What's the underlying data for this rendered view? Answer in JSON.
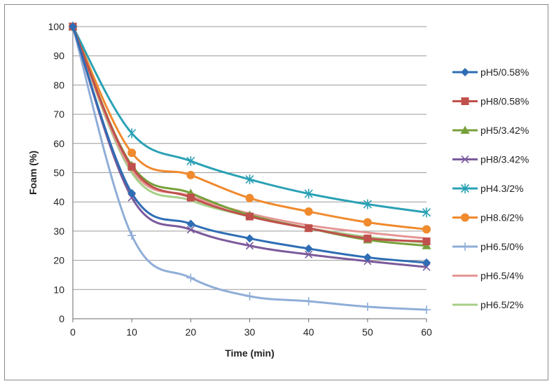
{
  "chart_data": {
    "type": "line",
    "title": "",
    "xlabel": "Time (min)",
    "ylabel": "Foam (%)",
    "x": [
      0,
      10,
      20,
      30,
      40,
      50,
      60
    ],
    "xlim": [
      0,
      60
    ],
    "ylim": [
      0,
      100
    ],
    "xticks": [
      "0",
      "10",
      "20",
      "30",
      "40",
      "50",
      "60"
    ],
    "yticks": [
      "0",
      "10",
      "20",
      "30",
      "40",
      "50",
      "60",
      "70",
      "80",
      "90",
      "100"
    ],
    "grid": "horizontal",
    "legend_position": "right",
    "series": [
      {
        "name": "pH5/0.58%",
        "color": "#2E6DB4",
        "marker": "diamond",
        "values": [
          100,
          43,
          32.5,
          27.5,
          24,
          21,
          19.2
        ]
      },
      {
        "name": "pH8/0.58%",
        "color": "#C0504D",
        "marker": "square",
        "values": [
          100,
          52,
          41.5,
          35,
          31,
          27.5,
          26.5
        ]
      },
      {
        "name": "pH5/3.42%",
        "color": "#77A03A",
        "marker": "triangle",
        "values": [
          100,
          52.5,
          43,
          35.5,
          31,
          27,
          25
        ]
      },
      {
        "name": "pH8/3.42%",
        "color": "#7B5A9C",
        "marker": "x",
        "values": [
          100,
          41.5,
          30.5,
          25,
          22,
          19.7,
          17.7
        ]
      },
      {
        "name": "pH4.3/2%",
        "color": "#2AA1B5",
        "marker": "asterisk",
        "values": [
          100,
          63.5,
          54,
          47.7,
          42.8,
          39.2,
          36.4
        ]
      },
      {
        "name": "pH8.6/2%",
        "color": "#F08A2E",
        "marker": "circle",
        "values": [
          100,
          56.8,
          49.2,
          41.3,
          36.7,
          33,
          30.6
        ]
      },
      {
        "name": "pH6.5/0%",
        "color": "#8FAED8",
        "marker": "plus",
        "values": [
          100,
          28.5,
          14,
          7.7,
          6,
          4.1,
          3.1
        ]
      },
      {
        "name": "pH6.5/4%",
        "color": "#E59694",
        "marker": "none",
        "values": [
          100,
          51,
          42,
          36,
          32,
          29.5,
          27.5
        ]
      },
      {
        "name": "pH6.5/2%",
        "color": "#A6CF87",
        "marker": "none",
        "values": [
          100,
          50,
          40.5,
          35,
          31,
          28,
          26
        ]
      }
    ]
  }
}
